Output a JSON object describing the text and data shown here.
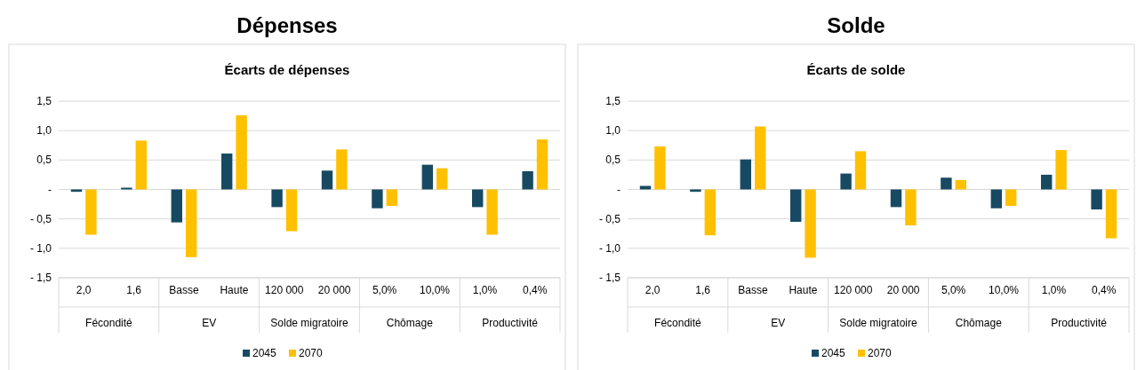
{
  "chart_data": [
    {
      "type": "bar",
      "title": "Dépenses",
      "subtitle": "Écarts de dépenses",
      "categories": [
        "2,0",
        "1,6",
        "Basse",
        "Haute",
        "120 000",
        "20 000",
        "5,0%",
        "10,0%",
        "1,0%",
        "0,4%"
      ],
      "annotations": [
        "Fécondité",
        "EV",
        "Solde migratoire",
        "Chômage",
        "Productivité"
      ],
      "series": [
        {
          "name": "2045",
          "color": "#174a62",
          "values": [
            -0.04,
            0.03,
            -0.56,
            0.61,
            -0.3,
            0.32,
            -0.32,
            0.42,
            -0.3,
            0.31
          ]
        },
        {
          "name": "2070",
          "color": "#ffc000",
          "values": [
            -0.77,
            0.83,
            -1.15,
            1.26,
            -0.71,
            0.68,
            -0.28,
            0.36,
            -0.77,
            0.85
          ]
        }
      ],
      "ylim": [
        -1.5,
        1.5
      ],
      "yticks": [
        {
          "value": -1.5,
          "label": "- 1,5"
        },
        {
          "value": -1,
          "label": "- 1,0"
        },
        {
          "value": -0.5,
          "label": "- 0,5"
        },
        {
          "value": 0,
          "label": "-"
        },
        {
          "value": 0.5,
          "label": "0,5"
        },
        {
          "value": 1,
          "label": "1,0"
        },
        {
          "value": 1.5,
          "label": "1,5"
        }
      ],
      "grid": "y",
      "legend": "bottom"
    },
    {
      "type": "bar",
      "title": "Solde",
      "subtitle": "Écarts de solde",
      "categories": [
        "2,0",
        "1,6",
        "Basse",
        "Haute",
        "120 000",
        "20 000",
        "5,0%",
        "10,0%",
        "1,0%",
        "0,4%"
      ],
      "annotations": [
        "Fécondité",
        "EV",
        "Solde migratoire",
        "Chômage",
        "Productivité"
      ],
      "series": [
        {
          "name": "2045",
          "color": "#174a62",
          "values": [
            0.06,
            -0.04,
            0.51,
            -0.55,
            0.27,
            -0.3,
            0.2,
            -0.32,
            0.25,
            -0.34
          ]
        },
        {
          "name": "2070",
          "color": "#ffc000",
          "values": [
            0.73,
            -0.78,
            1.07,
            -1.16,
            0.65,
            -0.61,
            0.16,
            -0.28,
            0.67,
            -0.83
          ]
        }
      ],
      "ylim": [
        -1.5,
        1.5
      ],
      "yticks": [
        {
          "value": -1.5,
          "label": "- 1,5"
        },
        {
          "value": -1,
          "label": "- 1,0"
        },
        {
          "value": -0.5,
          "label": "- 0,5"
        },
        {
          "value": 0,
          "label": "-"
        },
        {
          "value": 0.5,
          "label": "0,5"
        },
        {
          "value": 1,
          "label": "1,0"
        },
        {
          "value": 1.5,
          "label": "1,5"
        }
      ],
      "grid": "y",
      "legend": "bottom"
    }
  ]
}
